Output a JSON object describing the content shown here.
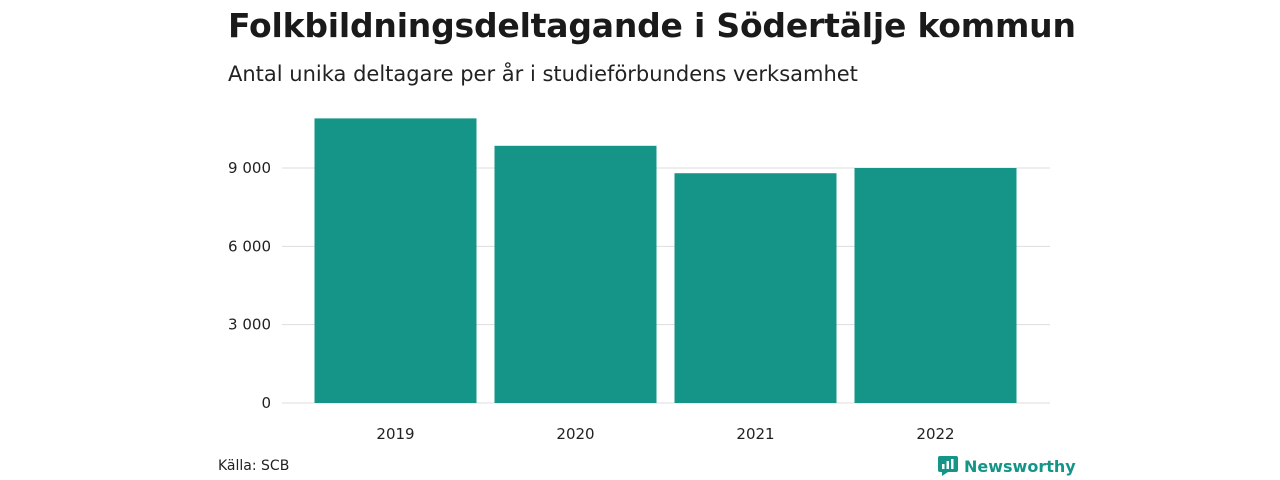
{
  "title": "Folkbildningsdeltagande i Södertälje kommun",
  "subtitle": "Antal unika deltagare per år i studieförbundens verksamhet",
  "source": "Källa: SCB",
  "brand": "Newsworthy",
  "colors": {
    "bar": "#159488",
    "grid": "#dddddd",
    "brand": "#159488"
  },
  "chart_data": {
    "type": "bar",
    "categories": [
      "2019",
      "2020",
      "2021",
      "2022"
    ],
    "values": [
      10900,
      9850,
      8800,
      9000
    ],
    "ylim": [
      0,
      11000
    ],
    "yticks": [
      0,
      3000,
      6000,
      9000
    ],
    "ytick_labels": [
      "0",
      "3 000",
      "6 000",
      "9 000"
    ],
    "grid": true
  }
}
